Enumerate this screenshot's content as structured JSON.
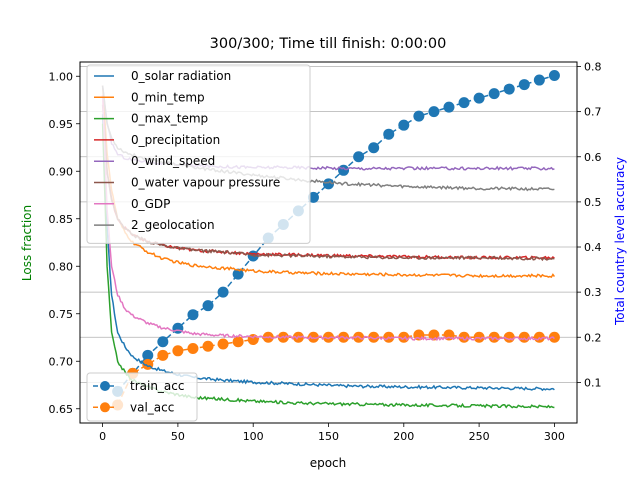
{
  "chart_data": {
    "type": "line",
    "title": "300/300; Time till finish: 0:00:00",
    "xlabel": "epoch",
    "ylabel_left": "Loss fraction",
    "ylabel_right": "Total country level accuracy",
    "xlim": [
      -15,
      315
    ],
    "ylim_left": [
      0.635,
      1.015
    ],
    "ylim_right": [
      0.01,
      0.81
    ],
    "x_ticks": [
      0,
      50,
      100,
      150,
      200,
      250,
      300
    ],
    "y_ticks_left": [
      0.65,
      0.7,
      0.75,
      0.8,
      0.85,
      0.9,
      0.95,
      1.0
    ],
    "y_ticks_right": [
      0.1,
      0.2,
      0.3,
      0.4,
      0.5,
      0.6,
      0.7,
      0.8
    ],
    "grid": "horizontal lines at right-axis ticks",
    "legend_left_placement": "top-left",
    "legend_right_placement": "bottom-left",
    "loss_series": [
      {
        "name": "0_solar radiation",
        "color": "#1f77b4",
        "x": [
          0,
          3,
          6,
          10,
          15,
          20,
          30,
          40,
          50,
          60,
          80,
          100,
          130,
          160,
          200,
          250,
          300
        ],
        "y": [
          0.96,
          0.84,
          0.77,
          0.73,
          0.715,
          0.705,
          0.695,
          0.69,
          0.686,
          0.683,
          0.68,
          0.678,
          0.676,
          0.674,
          0.673,
          0.672,
          0.671
        ]
      },
      {
        "name": "0_min_temp",
        "color": "#ff7f0e",
        "x": [
          0,
          3,
          6,
          10,
          15,
          20,
          30,
          40,
          50,
          60,
          80,
          100,
          130,
          160,
          200,
          250,
          300
        ],
        "y": [
          0.99,
          0.92,
          0.88,
          0.85,
          0.835,
          0.825,
          0.815,
          0.808,
          0.804,
          0.801,
          0.798,
          0.795,
          0.793,
          0.792,
          0.791,
          0.79,
          0.79
        ]
      },
      {
        "name": "0_max_temp",
        "color": "#2ca02c",
        "x": [
          0,
          3,
          6,
          10,
          15,
          20,
          30,
          40,
          50,
          60,
          80,
          100,
          130,
          160,
          200,
          250,
          300
        ],
        "y": [
          0.95,
          0.8,
          0.73,
          0.7,
          0.688,
          0.68,
          0.673,
          0.668,
          0.665,
          0.662,
          0.66,
          0.658,
          0.656,
          0.655,
          0.654,
          0.653,
          0.652
        ]
      },
      {
        "name": "0_precipitation",
        "color": "#d62728",
        "x": [
          0,
          3,
          6,
          10,
          15,
          20,
          30,
          40,
          50,
          60,
          80,
          100,
          130,
          160,
          200,
          250,
          300
        ],
        "y": [
          0.98,
          0.9,
          0.87,
          0.85,
          0.84,
          0.833,
          0.826,
          0.822,
          0.819,
          0.817,
          0.815,
          0.813,
          0.812,
          0.811,
          0.81,
          0.809,
          0.809
        ]
      },
      {
        "name": "0_wind_speed",
        "color": "#9467bd",
        "x": [
          0,
          3,
          6,
          10,
          15,
          20,
          30,
          40,
          50,
          60,
          80,
          100,
          130,
          160,
          200,
          250,
          300
        ],
        "y": [
          0.99,
          0.95,
          0.93,
          0.918,
          0.914,
          0.912,
          0.91,
          0.908,
          0.907,
          0.906,
          0.905,
          0.904,
          0.904,
          0.903,
          0.903,
          0.903,
          0.903
        ]
      },
      {
        "name": "0_water vapour pressure",
        "color": "#8c564b",
        "x": [
          0,
          3,
          6,
          10,
          15,
          20,
          30,
          40,
          50,
          60,
          80,
          100,
          130,
          160,
          200,
          250,
          300
        ],
        "y": [
          0.97,
          0.9,
          0.87,
          0.85,
          0.84,
          0.833,
          0.826,
          0.822,
          0.819,
          0.817,
          0.815,
          0.812,
          0.811,
          0.81,
          0.809,
          0.809,
          0.808
        ]
      },
      {
        "name": "0_GDP",
        "color": "#e377c2",
        "x": [
          0,
          3,
          6,
          10,
          15,
          20,
          30,
          40,
          50,
          60,
          80,
          100,
          130,
          160,
          200,
          250,
          300
        ],
        "y": [
          0.98,
          0.86,
          0.8,
          0.77,
          0.755,
          0.748,
          0.74,
          0.735,
          0.732,
          0.729,
          0.727,
          0.726,
          0.725,
          0.725,
          0.724,
          0.724,
          0.724
        ]
      },
      {
        "name": "2_geolocation",
        "color": "#7f7f7f",
        "x": [
          0,
          3,
          6,
          10,
          15,
          20,
          30,
          40,
          50,
          60,
          80,
          100,
          130,
          160,
          200,
          250,
          300
        ],
        "y": [
          0.99,
          0.95,
          0.935,
          0.925,
          0.92,
          0.917,
          0.913,
          0.91,
          0.907,
          0.904,
          0.9,
          0.896,
          0.891,
          0.887,
          0.884,
          0.882,
          0.881
        ]
      }
    ],
    "accuracy_series": [
      {
        "name": "train_acc",
        "color": "#1f77b4",
        "marker": "circle",
        "linestyle": "dashed",
        "x": [
          10,
          20,
          30,
          40,
          50,
          60,
          70,
          80,
          90,
          100,
          110,
          120,
          130,
          140,
          150,
          160,
          170,
          180,
          190,
          200,
          210,
          220,
          230,
          240,
          250,
          260,
          270,
          280,
          290,
          300
        ],
        "y": [
          0.08,
          0.12,
          0.16,
          0.19,
          0.22,
          0.25,
          0.27,
          0.3,
          0.34,
          0.38,
          0.42,
          0.45,
          0.48,
          0.51,
          0.54,
          0.57,
          0.6,
          0.62,
          0.65,
          0.67,
          0.69,
          0.7,
          0.71,
          0.72,
          0.73,
          0.74,
          0.75,
          0.76,
          0.77,
          0.78
        ]
      },
      {
        "name": "val_acc",
        "color": "#ff7f0e",
        "marker": "circle",
        "linestyle": "dashed",
        "x": [
          10,
          20,
          30,
          40,
          50,
          60,
          70,
          80,
          90,
          100,
          110,
          120,
          130,
          140,
          150,
          160,
          170,
          180,
          190,
          200,
          210,
          220,
          230,
          240,
          250,
          260,
          270,
          280,
          290,
          300
        ],
        "y": [
          0.05,
          0.12,
          0.14,
          0.16,
          0.17,
          0.175,
          0.18,
          0.185,
          0.19,
          0.195,
          0.2,
          0.2,
          0.2,
          0.2,
          0.2,
          0.2,
          0.2,
          0.2,
          0.2,
          0.2,
          0.205,
          0.205,
          0.205,
          0.2,
          0.2,
          0.2,
          0.2,
          0.2,
          0.2,
          0.2
        ]
      }
    ]
  }
}
